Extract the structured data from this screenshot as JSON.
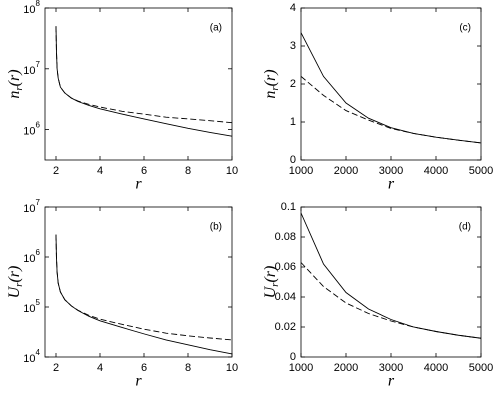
{
  "chart_data": [
    {
      "type": "line",
      "annotation": "(a)",
      "xlabel": "r",
      "ylabel": {
        "base": "n",
        "sub": "r",
        "tail": "(r)"
      },
      "log_y": true,
      "xlim": [
        1.5,
        10
      ],
      "xticks": [
        2,
        4,
        6,
        8,
        10
      ],
      "ylim": [
        316228,
        100000000
      ],
      "yticks": [
        {
          "value": 1000000,
          "label": "10",
          "exponent": "6"
        },
        {
          "value": 10000000,
          "label": "10",
          "exponent": "7"
        },
        {
          "value": 100000000,
          "label": "10",
          "exponent": "8"
        }
      ],
      "x": [
        2,
        2.02,
        2.05,
        2.1,
        2.2,
        2.4,
        2.7,
        3,
        3.5,
        4,
        5,
        6,
        7,
        8,
        9,
        10
      ],
      "series": [
        {
          "color": "#000000",
          "style": "solid",
          "values": [
            50000000,
            20000000,
            10000000,
            7000000,
            5000000,
            4000000,
            3300000,
            2900000,
            2500000,
            2200000,
            1800000,
            1500000,
            1250000,
            1050000,
            900000,
            780000
          ]
        },
        {
          "color": "#000000",
          "style": "dashed",
          "values": [
            50000000,
            20000000,
            10000000,
            7000000,
            5000000,
            4000000,
            3300000,
            2950000,
            2600000,
            2350000,
            2000000,
            1800000,
            1600000,
            1500000,
            1400000,
            1300000
          ]
        }
      ]
    },
    {
      "type": "line",
      "annotation": "(c)",
      "xlabel": "r",
      "ylabel": {
        "base": "n",
        "sub": "r",
        "tail": "(r)"
      },
      "log_y": false,
      "xlim": [
        1000,
        5000
      ],
      "xticks": [
        1000,
        2000,
        3000,
        4000,
        5000
      ],
      "ylim": [
        0,
        4
      ],
      "yticks": [
        0,
        1,
        2,
        3,
        4
      ],
      "x": [
        1000,
        1500,
        2000,
        2500,
        3000,
        3500,
        4000,
        4500,
        5000
      ],
      "series": [
        {
          "color": "#000000",
          "style": "solid",
          "values": [
            3.35,
            2.2,
            1.5,
            1.1,
            0.85,
            0.7,
            0.6,
            0.52,
            0.45
          ]
        },
        {
          "color": "#000000",
          "style": "dashed",
          "values": [
            2.2,
            1.7,
            1.3,
            1.05,
            0.83,
            0.7,
            0.6,
            0.52,
            0.45
          ]
        }
      ]
    },
    {
      "type": "line",
      "annotation": "(b)",
      "xlabel": "r",
      "ylabel": {
        "base": "U",
        "sub": "r",
        "tail": "(r)"
      },
      "log_y": true,
      "xlim": [
        1.5,
        10
      ],
      "xticks": [
        2,
        4,
        6,
        8,
        10
      ],
      "ylim": [
        10000,
        10000000
      ],
      "yticks": [
        {
          "value": 10000,
          "label": "10",
          "exponent": "4"
        },
        {
          "value": 100000,
          "label": "10",
          "exponent": "5"
        },
        {
          "value": 1000000,
          "label": "10",
          "exponent": "6"
        },
        {
          "value": 10000000,
          "label": "10",
          "exponent": "7"
        }
      ],
      "x": [
        2,
        2.02,
        2.05,
        2.1,
        2.2,
        2.4,
        2.7,
        3,
        3.5,
        4,
        5,
        6,
        7,
        8,
        9,
        10
      ],
      "series": [
        {
          "color": "#000000",
          "style": "solid",
          "values": [
            2800000,
            1000000,
            500000,
            300000,
            200000,
            140000,
            105000,
            85000,
            65000,
            53000,
            39000,
            29000,
            22000,
            17500,
            14000,
            11500
          ]
        },
        {
          "color": "#000000",
          "style": "dashed",
          "values": [
            2800000,
            1000000,
            500000,
            300000,
            200000,
            140000,
            105000,
            86000,
            68000,
            57000,
            45000,
            36000,
            30000,
            26500,
            24000,
            22000
          ]
        }
      ]
    },
    {
      "type": "line",
      "annotation": "(d)",
      "xlabel": "r",
      "ylabel": {
        "base": "U",
        "sub": "r",
        "tail": "(r)"
      },
      "log_y": false,
      "xlim": [
        1000,
        5000
      ],
      "xticks": [
        1000,
        2000,
        3000,
        4000,
        5000
      ],
      "ylim": [
        0,
        0.1
      ],
      "yticks": [
        0,
        0.02,
        0.04,
        0.06,
        0.08,
        0.1
      ],
      "x": [
        1000,
        1500,
        2000,
        2500,
        3000,
        3500,
        4000,
        4500,
        5000
      ],
      "series": [
        {
          "color": "#000000",
          "style": "solid",
          "values": [
            0.096,
            0.062,
            0.043,
            0.032,
            0.025,
            0.02,
            0.017,
            0.0145,
            0.0125
          ]
        },
        {
          "color": "#000000",
          "style": "dashed",
          "values": [
            0.063,
            0.047,
            0.036,
            0.029,
            0.024,
            0.02,
            0.017,
            0.0145,
            0.0125
          ]
        }
      ]
    }
  ]
}
